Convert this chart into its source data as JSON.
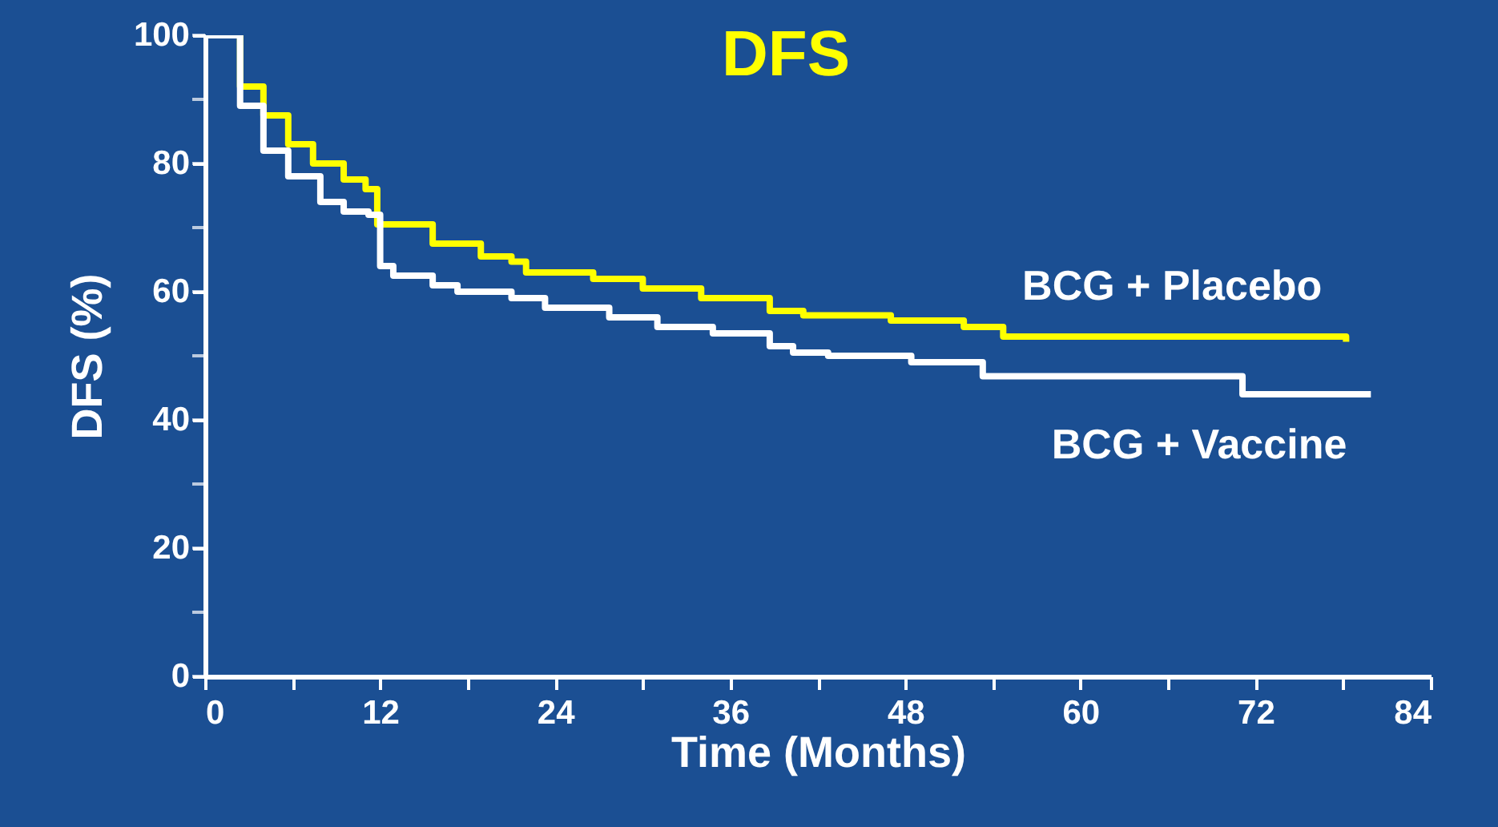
{
  "chart_data": {
    "type": "step",
    "title": "DFS",
    "xlabel": "Time (Months)",
    "ylabel": "DFS (%)",
    "xlim": [
      0,
      84
    ],
    "ylim": [
      0,
      100
    ],
    "xticks": [
      0,
      {
        "value": 6,
        "label": null
      },
      12,
      {
        "value": 18,
        "label": null
      },
      24,
      {
        "value": 30,
        "label": null
      },
      36,
      {
        "value": 42,
        "label": null
      },
      48,
      {
        "value": 54,
        "label": null
      },
      60,
      {
        "value": 66,
        "label": null
      },
      72,
      {
        "value": 78,
        "label": null
      },
      84
    ],
    "yticks": [
      0,
      {
        "value": 10,
        "label": null
      },
      20,
      {
        "value": 30,
        "label": null
      },
      40,
      {
        "value": 50,
        "label": null
      },
      60,
      {
        "value": 70,
        "label": null
      },
      80,
      {
        "value": 90,
        "label": null
      },
      100
    ],
    "grid": false,
    "legend": false,
    "line_style": "solid",
    "marker": "none",
    "series": [
      {
        "name": "BCG + Placebo",
        "color": "#ffff00",
        "x": [
          0,
          2.4,
          4,
          5.7,
          7.4,
          9.5,
          11,
          11.8,
          15.6,
          18.9,
          21,
          22,
          26.6,
          30,
          34,
          38.7,
          41,
          47,
          52,
          54.7,
          78.2
        ],
        "values": [
          100,
          92,
          87.5,
          83,
          80,
          77.5,
          76,
          70.5,
          67.5,
          65.5,
          64.7,
          63,
          62,
          60.5,
          59,
          57,
          56.3,
          55.5,
          54.5,
          53,
          52.2
        ]
      },
      {
        "name": "BCG + Vaccine",
        "color": "#ffffff",
        "x": [
          0,
          2.4,
          4,
          5.7,
          7.9,
          9.5,
          11.2,
          12,
          12.9,
          15.6,
          17.3,
          21,
          23.3,
          27.7,
          31,
          34.8,
          38.7,
          40.3,
          42.7,
          48.4,
          53.3,
          71.1,
          79.9
        ],
        "values": [
          100,
          89,
          82,
          78,
          74,
          72.5,
          72,
          64,
          62.5,
          61,
          60,
          59,
          57.5,
          56,
          54.5,
          53.5,
          51.5,
          50.5,
          50,
          49,
          46.8,
          44,
          44
        ]
      }
    ]
  }
}
